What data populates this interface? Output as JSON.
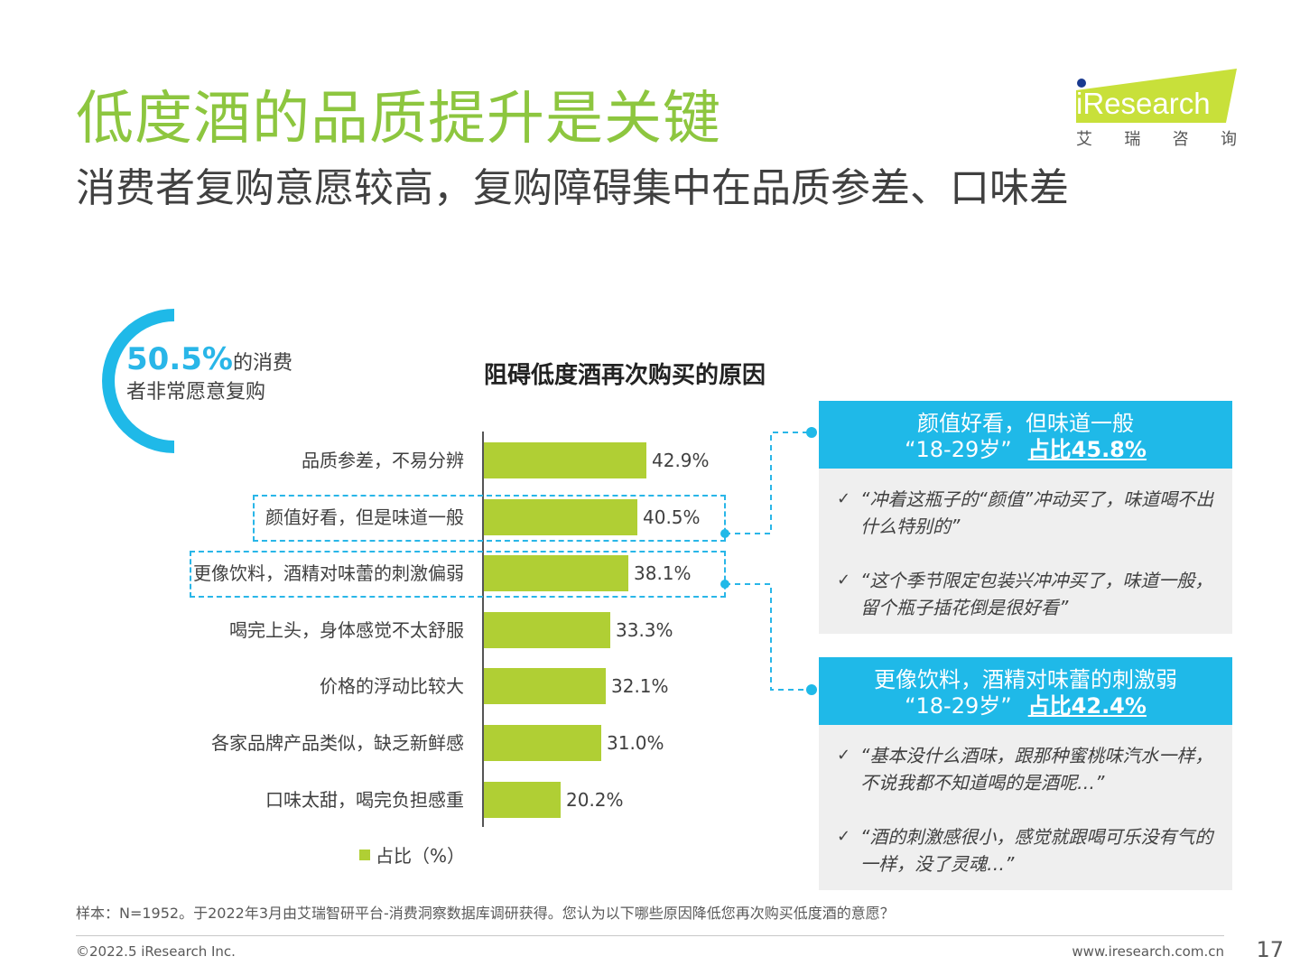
{
  "header": {
    "title": "低度酒的品质提升是关键",
    "subtitle": "消费者复购意愿较高，复购障碍集中在品质参差、口味差"
  },
  "logo": {
    "brand_text": "iResearch",
    "chinese_name": [
      "艾",
      "瑞",
      "咨",
      "询"
    ],
    "colors": {
      "lime": "#c8e03a",
      "dot": "#1a3a8f"
    }
  },
  "stat": {
    "percent": "50.5%",
    "text_line1": "的消费",
    "text_line2": "者非常愿意复购"
  },
  "chart_data": {
    "type": "bar",
    "orientation": "horizontal",
    "title": "阻碍低度酒再次购买的原因",
    "categories": [
      "品质参差，不易分辨",
      "颜值好看，但是味道一般",
      "更像饮料，酒精对味蕾的刺激偏弱",
      "喝完上头，身体感觉不太舒服",
      "价格的浮动比较大",
      "各家品牌产品类似，缺乏新鲜感",
      "口味太甜，喝完负担感重"
    ],
    "series": [
      {
        "name": "占比（%）",
        "values": [
          42.9,
          40.5,
          38.1,
          33.3,
          32.1,
          31.0,
          20.2
        ],
        "labels": [
          "42.9%",
          "40.5%",
          "38.1%",
          "33.3%",
          "32.1%",
          "31.0%",
          "20.2%"
        ]
      }
    ],
    "xlim": [
      0,
      100
    ],
    "bar_color": "#b0cf34",
    "legend_position": "bottom",
    "highlighted_categories": [
      "颜值好看，但是味道一般",
      "更像饮料，酒精对味蕾的刺激偏弱"
    ]
  },
  "panels": [
    {
      "title": "颜值好看，但味道一般",
      "age": "“18-29岁”",
      "share": "占比45.8%",
      "check": "✓",
      "quotes": [
        "“冲着这瓶子的“颜值”冲动买了，味道喝不出什么特别的”",
        "“这个季节限定包装兴冲冲买了，味道一般，留个瓶子插花倒是很好看”"
      ]
    },
    {
      "title": "更像饮料，酒精对味蕾的刺激弱",
      "age": "“18-29岁”",
      "share": "占比42.4%",
      "check": "✓",
      "quotes": [
        "“基本没什么酒味，跟那种蜜桃味汽水一样，不说我都不知道喝的是酒呢…”",
        "“酒的刺激感很小，感觉就跟喝可乐没有气的一样，没了灵魂…”"
      ]
    }
  ],
  "footer": {
    "note": "样本：N=1952。于2022年3月由艾瑞智研平台-消费洞察数据库调研获得。您认为以下哪些原因降低您再次购买低度酒的意愿？",
    "copyright": "©2022.5 iResearch Inc.",
    "website": "www.iresearch.com.cn",
    "page_number": "17"
  },
  "colors": {
    "title_green": "#8dc63f",
    "accent_blue": "#1fb9e8",
    "panel_gray": "#efefef"
  }
}
